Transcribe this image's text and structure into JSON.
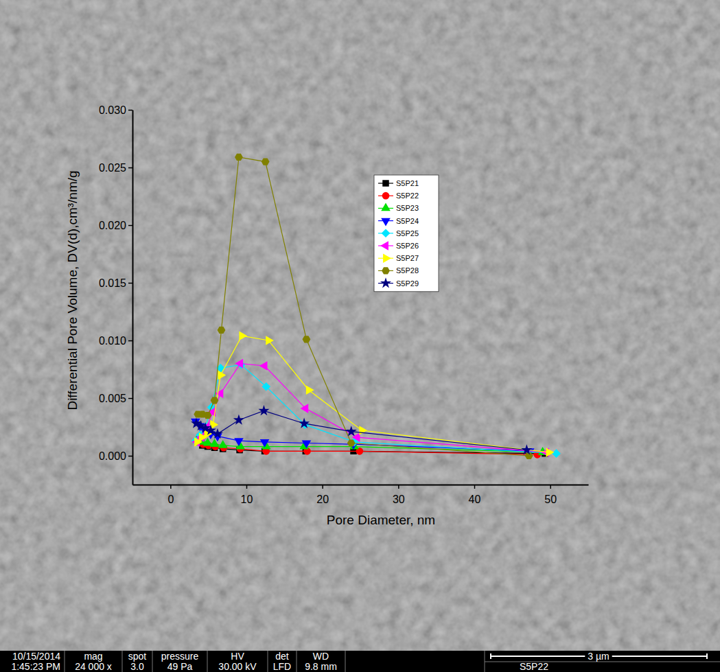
{
  "chart_data": {
    "type": "line",
    "x_label": "Pore Diameter, nm",
    "y_label": "Differential Pore Volume, DV(d),cm³/nm/g",
    "xlim": [
      -5,
      55
    ],
    "xticks": [
      0,
      10,
      20,
      30,
      40,
      50
    ],
    "ylim": [
      -0.0025,
      0.03
    ],
    "yticks": [
      {
        "value": 0,
        "label": "0.000"
      },
      {
        "value": 0.005,
        "label": "0.005"
      },
      {
        "value": 0.01,
        "label": "0.010"
      },
      {
        "value": 0.015,
        "label": "0.015"
      },
      {
        "value": 0.02,
        "label": "0.020"
      },
      {
        "value": 0.025,
        "label": "0.025"
      },
      {
        "value": 0.03,
        "label": "0.030"
      }
    ],
    "grid": false,
    "legend": "top-right",
    "series": [
      {
        "name": "S5P21",
        "color": "#000000",
        "marker": "square",
        "line_style": "solid",
        "x": [
          3.6,
          4.2,
          4.9,
          5.8,
          6.9,
          9.1,
          12.4,
          17.8,
          24.1,
          49.3
        ],
        "values": [
          0.0012,
          0.0009,
          0.0008,
          0.0007,
          0.0006,
          0.0005,
          0.0004,
          0.0004,
          0.0004,
          0.0002
        ]
      },
      {
        "name": "S5P22",
        "color": "#ff0000",
        "marker": "circle",
        "line_style": "solid",
        "x": [
          3.7,
          4.3,
          5.0,
          5.9,
          7.0,
          9.2,
          12.6,
          18.0,
          24.9,
          48.3
        ],
        "values": [
          0.0013,
          0.001,
          0.0009,
          0.0008,
          0.0007,
          0.0006,
          0.0004,
          0.0004,
          0.0004,
          0.0001
        ]
      },
      {
        "name": "S5P23",
        "color": "#00e000",
        "marker": "triangle-up",
        "line_style": "solid",
        "x": [
          3.6,
          4.2,
          4.9,
          5.8,
          6.9,
          9.2,
          12.6,
          17.6,
          24.2,
          49.0
        ],
        "values": [
          0.0015,
          0.0012,
          0.0011,
          0.001,
          0.0009,
          0.0008,
          0.0008,
          0.0008,
          0.0008,
          0.0003
        ]
      },
      {
        "name": "S5P24",
        "color": "#0000ff",
        "marker": "triangle-down",
        "line_style": "solid",
        "x": [
          3.3,
          3.9,
          4.5,
          5.3,
          6.2,
          9.0,
          12.4,
          17.9,
          24.1,
          47.3
        ],
        "values": [
          0.003,
          0.0026,
          0.0022,
          0.0019,
          0.0017,
          0.0013,
          0.0012,
          0.0011,
          0.001,
          0.0004
        ]
      },
      {
        "name": "S5P25",
        "color": "#00e5ff",
        "marker": "diamond",
        "line_style": "solid",
        "x": [
          3.3,
          3.9,
          4.6,
          5.4,
          6.6,
          9.3,
          12.6,
          17.7,
          24.2,
          50.8
        ],
        "values": [
          0.0013,
          0.0018,
          0.0025,
          0.0042,
          0.0076,
          0.0079,
          0.006,
          0.0027,
          0.0012,
          0.0002
        ]
      },
      {
        "name": "S5P26",
        "color": "#ff00ff",
        "marker": "triangle-left",
        "line_style": "solid",
        "x": [
          3.5,
          4.1,
          4.8,
          5.6,
          6.6,
          9.2,
          12.4,
          17.8,
          24.6,
          49.5
        ],
        "values": [
          0.0012,
          0.0016,
          0.0025,
          0.0038,
          0.0054,
          0.008,
          0.0078,
          0.0041,
          0.0016,
          0.0003
        ]
      },
      {
        "name": "S5P27",
        "color": "#ffff00",
        "marker": "triangle-right",
        "line_style": "solid",
        "x": [
          3.5,
          4.1,
          4.8,
          5.6,
          6.6,
          9.4,
          12.9,
          18.2,
          25.2,
          49.8
        ],
        "values": [
          0.0012,
          0.0016,
          0.0019,
          0.0027,
          0.007,
          0.0104,
          0.01,
          0.0057,
          0.0022,
          0.0003
        ]
      },
      {
        "name": "S5P28",
        "color": "#808000",
        "marker": "hexagon",
        "line_style": "solid",
        "x": [
          3.6,
          4.2,
          4.9,
          5.8,
          6.7,
          9.0,
          12.5,
          17.9,
          23.8,
          47.2
        ],
        "values": [
          0.0036,
          0.0036,
          0.0035,
          0.0048,
          0.0109,
          0.0259,
          0.0255,
          0.0101,
          0.0011,
          0.0
        ]
      },
      {
        "name": "S5P29",
        "color": "#000080",
        "marker": "star",
        "line_style": "solid",
        "x": [
          3.4,
          4.0,
          4.6,
          5.3,
          6.2,
          9.0,
          12.3,
          17.6,
          23.8,
          46.9
        ],
        "values": [
          0.0028,
          0.0026,
          0.0024,
          0.0022,
          0.0019,
          0.0031,
          0.0039,
          0.0028,
          0.0021,
          0.0005
        ]
      }
    ]
  },
  "image_info": {
    "date": "10/15/2014",
    "time": "1:45:23 PM",
    "fields": [
      {
        "label": "mag",
        "value": "24 000 x"
      },
      {
        "label": "spot",
        "value": "3.0"
      },
      {
        "label": "pressure",
        "value": "49 Pa"
      },
      {
        "label": "HV",
        "value": "30.00 kV"
      },
      {
        "label": "det",
        "value": "LFD"
      },
      {
        "label": "WD",
        "value": "9.8 mm"
      }
    ],
    "scale_bar": "3 µm",
    "sample": "S5P22"
  }
}
